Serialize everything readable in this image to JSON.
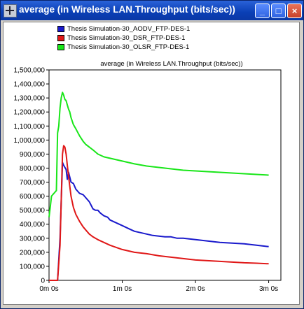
{
  "window": {
    "title": "average (in Wireless LAN.Throughput (bits/sec))",
    "buttons": {
      "minimize": "_",
      "maximize": "□",
      "close": "×"
    }
  },
  "legend": [
    {
      "label": "Thesis Simulation-30_AODV_FTP-DES-1",
      "color": "#1a1acc"
    },
    {
      "label": "Thesis Simulation-30_DSR_FTP-DES-1",
      "color": "#e01818"
    },
    {
      "label": "Thesis Simulation-30_OLSR_FTP-DES-1",
      "color": "#19e619"
    }
  ],
  "chart_data": {
    "type": "line",
    "title": "average (in Wireless LAN.Throughput (bits/sec))",
    "xlabel": "",
    "ylabel": "",
    "x_unit": "seconds",
    "xlim": [
      0,
      190
    ],
    "ylim": [
      0,
      1500000
    ],
    "xticks": [
      {
        "value": 0,
        "label": "0m 0s"
      },
      {
        "value": 60,
        "label": "1m 0s"
      },
      {
        "value": 120,
        "label": "2m 0s"
      },
      {
        "value": 180,
        "label": "3m 0s"
      }
    ],
    "yticks": [
      0,
      100000,
      200000,
      300000,
      400000,
      500000,
      600000,
      700000,
      800000,
      900000,
      1000000,
      1100000,
      1200000,
      1300000,
      1400000,
      1500000
    ],
    "ytick_labels": [
      "0",
      "100,000",
      "200,000",
      "300,000",
      "400,000",
      "500,000",
      "600,000",
      "700,000",
      "800,000",
      "900,000",
      "1,000,000",
      "1,100,000",
      "1,200,000",
      "1,300,000",
      "1,400,000",
      "1,500,000"
    ],
    "grid": false,
    "series": [
      {
        "name": "Thesis Simulation-30_AODV_FTP-DES-1",
        "color": "#1a1acc",
        "x": [
          0,
          7,
          9,
          11,
          12,
          14,
          15,
          16,
          18,
          20,
          22,
          25,
          28,
          30,
          33,
          36,
          38,
          40,
          42,
          45,
          48,
          50,
          55,
          60,
          65,
          70,
          75,
          80,
          85,
          90,
          95,
          100,
          105,
          110,
          115,
          120,
          130,
          140,
          150,
          160,
          170,
          180
        ],
        "y": [
          0,
          0,
          300000,
          840000,
          820000,
          790000,
          720000,
          770000,
          700000,
          690000,
          650000,
          620000,
          610000,
          590000,
          560000,
          510000,
          500000,
          500000,
          480000,
          460000,
          450000,
          430000,
          410000,
          390000,
          370000,
          350000,
          340000,
          330000,
          320000,
          315000,
          310000,
          310000,
          300000,
          300000,
          295000,
          290000,
          280000,
          270000,
          265000,
          260000,
          250000,
          240000
        ]
      },
      {
        "name": "Thesis Simulation-30_DSR_FTP-DES-1",
        "color": "#e01818",
        "x": [
          0,
          7,
          9,
          11,
          12,
          13,
          14,
          15,
          16,
          18,
          20,
          22,
          25,
          28,
          30,
          33,
          36,
          40,
          45,
          50,
          60,
          70,
          80,
          90,
          100,
          110,
          120,
          130,
          140,
          150,
          160,
          170,
          180
        ],
        "y": [
          0,
          0,
          250000,
          900000,
          960000,
          950000,
          900000,
          820000,
          740000,
          600000,
          520000,
          470000,
          420000,
          380000,
          360000,
          330000,
          310000,
          290000,
          270000,
          250000,
          220000,
          200000,
          190000,
          175000,
          165000,
          155000,
          145000,
          140000,
          135000,
          130000,
          125000,
          122000,
          118000
        ]
      },
      {
        "name": "Thesis Simulation-30_OLSR_FTP-DES-1",
        "color": "#19e619",
        "x": [
          0,
          1,
          2,
          3,
          4,
          5,
          6,
          7,
          8,
          9,
          10,
          11,
          12,
          13,
          14,
          15,
          16,
          17,
          18,
          20,
          22,
          25,
          28,
          30,
          33,
          36,
          40,
          45,
          50,
          55,
          60,
          65,
          70,
          80,
          90,
          100,
          110,
          120,
          130,
          140,
          150,
          160,
          170,
          180
        ],
        "y": [
          450000,
          520000,
          600000,
          610000,
          620000,
          630000,
          640000,
          1050000,
          1100000,
          1230000,
          1300000,
          1340000,
          1320000,
          1290000,
          1280000,
          1250000,
          1220000,
          1200000,
          1160000,
          1110000,
          1080000,
          1030000,
          990000,
          970000,
          950000,
          930000,
          900000,
          880000,
          870000,
          860000,
          850000,
          840000,
          830000,
          815000,
          805000,
          795000,
          785000,
          780000,
          775000,
          770000,
          765000,
          760000,
          755000,
          750000
        ]
      }
    ]
  }
}
